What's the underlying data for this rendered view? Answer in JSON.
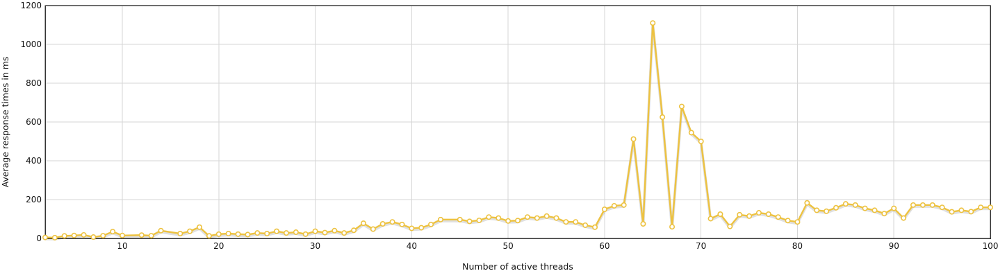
{
  "chart_data": {
    "type": "line",
    "title": "",
    "xlabel": "Number of active threads",
    "ylabel": "Average response times in ms",
    "xlim": [
      2,
      100
    ],
    "ylim": [
      0,
      1200
    ],
    "x_ticks": [
      10,
      20,
      30,
      40,
      50,
      60,
      70,
      80,
      90,
      100
    ],
    "y_ticks": [
      0,
      200,
      400,
      600,
      800,
      1000,
      1200
    ],
    "grid": true,
    "legend": "none",
    "colors": {
      "series": "#edc240",
      "point_fill": "#ffffff",
      "grid": "#d6d6d6",
      "frame": "#333333"
    },
    "series": [
      {
        "x": [
          2,
          3,
          4,
          5,
          6,
          7,
          8,
          9,
          10,
          12,
          13,
          14,
          16,
          17,
          18,
          19,
          20,
          21,
          22,
          23,
          24,
          25,
          26,
          27,
          28,
          29,
          30,
          31,
          32,
          33,
          34,
          35,
          36,
          37,
          38,
          39,
          40,
          41,
          42,
          43,
          45,
          46,
          47,
          48,
          49,
          50,
          51,
          52,
          53,
          54,
          55,
          56,
          57,
          58,
          59,
          60,
          61,
          62,
          63,
          64,
          65,
          66,
          67,
          68,
          69,
          70,
          71,
          72,
          73,
          74,
          75,
          76,
          77,
          78,
          79,
          80,
          81,
          82,
          83,
          84,
          85,
          86,
          87,
          88,
          89,
          90,
          91,
          92,
          93,
          94,
          95,
          96,
          97,
          98,
          99,
          100
        ],
        "values": [
          5,
          4,
          13,
          15,
          18,
          7,
          14,
          35,
          15,
          17,
          14,
          40,
          25,
          37,
          58,
          13,
          22,
          25,
          22,
          20,
          28,
          25,
          37,
          28,
          32,
          22,
          37,
          30,
          40,
          28,
          42,
          78,
          48,
          75,
          85,
          72,
          52,
          55,
          72,
          97,
          97,
          88,
          93,
          110,
          105,
          90,
          92,
          110,
          105,
          115,
          105,
          85,
          85,
          68,
          58,
          150,
          168,
          172,
          512,
          75,
          1110,
          625,
          60,
          680,
          545,
          500,
          102,
          125,
          62,
          122,
          115,
          132,
          125,
          110,
          92,
          85,
          183,
          145,
          140,
          158,
          178,
          172,
          155,
          145,
          128,
          155,
          105,
          172,
          172,
          172,
          160,
          137,
          145,
          138,
          160,
          160
        ]
      }
    ]
  }
}
